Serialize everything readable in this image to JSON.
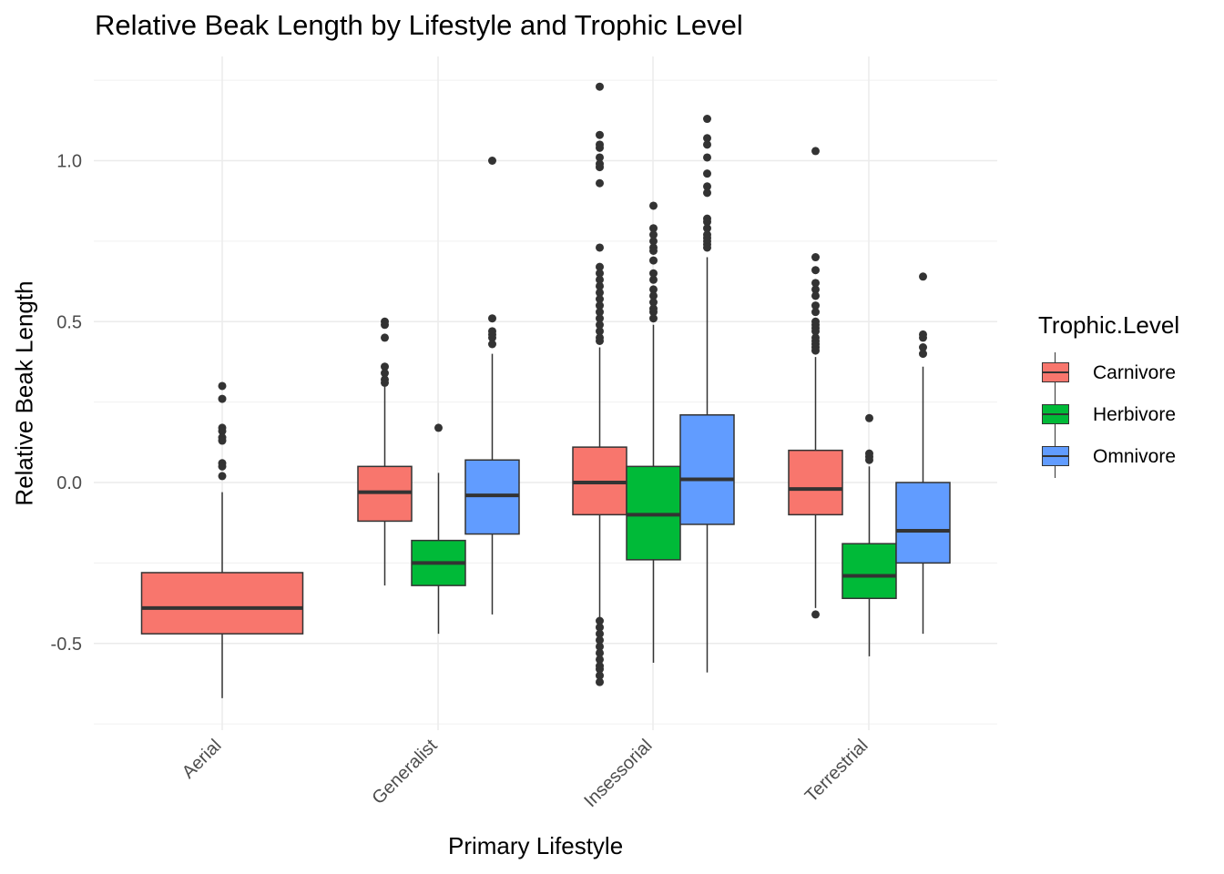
{
  "chart_data": {
    "type": "boxplot",
    "title": "Relative Beak Length by Lifestyle and Trophic Level",
    "xlabel": "Primary Lifestyle",
    "ylabel": "Relative Beak Length",
    "ylim": [
      -0.75,
      1.25
    ],
    "yticks": [
      -0.5,
      0.0,
      0.5,
      1.0
    ],
    "ytick_labels": [
      "-0.5",
      "0.0",
      "0.5",
      "1.0"
    ],
    "categories": [
      "Aerial",
      "Generalist",
      "Insessorial",
      "Terrestrial"
    ],
    "grid": true,
    "legend": {
      "title": "Trophic.Level",
      "position": "right",
      "entries": [
        {
          "name": "Carnivore",
          "color": "#F8766D"
        },
        {
          "name": "Herbivore",
          "color": "#00BA38"
        },
        {
          "name": "Omnivore",
          "color": "#619CFF"
        }
      ]
    },
    "boxes": [
      {
        "category": "Aerial",
        "group": "Carnivore",
        "slot": 0,
        "nslots": 1,
        "min": -0.67,
        "q1": -0.47,
        "median": -0.39,
        "q3": -0.28,
        "max": -0.03,
        "outliers": [
          0.3,
          0.26,
          0.17,
          0.16,
          0.14,
          0.13,
          0.06,
          0.05,
          0.02
        ]
      },
      {
        "category": "Generalist",
        "group": "Carnivore",
        "slot": 0,
        "nslots": 3,
        "min": -0.32,
        "q1": -0.12,
        "median": -0.03,
        "q3": 0.05,
        "max": 0.3,
        "outliers": [
          0.5,
          0.49,
          0.45,
          0.36,
          0.34,
          0.32,
          0.31
        ]
      },
      {
        "category": "Generalist",
        "group": "Herbivore",
        "slot": 1,
        "nslots": 3,
        "min": -0.47,
        "q1": -0.32,
        "median": -0.25,
        "q3": -0.18,
        "max": 0.03,
        "outliers": [
          0.17
        ]
      },
      {
        "category": "Generalist",
        "group": "Omnivore",
        "slot": 2,
        "nslots": 3,
        "min": -0.41,
        "q1": -0.16,
        "median": -0.04,
        "q3": 0.07,
        "max": 0.4,
        "outliers": [
          1.0,
          0.51,
          0.47,
          0.46,
          0.45,
          0.43
        ]
      },
      {
        "category": "Insessorial",
        "group": "Carnivore",
        "slot": 0,
        "nslots": 3,
        "min": -0.42,
        "q1": -0.1,
        "median": 0.0,
        "q3": 0.11,
        "max": 0.42,
        "outliers": [
          1.23,
          1.08,
          1.05,
          1.04,
          1.01,
          0.99,
          0.98,
          0.93,
          0.73,
          0.67,
          0.65,
          0.63,
          0.61,
          0.59,
          0.57,
          0.55,
          0.53,
          0.51,
          0.49,
          0.47,
          0.45,
          0.44,
          -0.43,
          -0.45,
          -0.47,
          -0.49,
          -0.51,
          -0.53,
          -0.55,
          -0.57,
          -0.58,
          -0.6,
          -0.62
        ]
      },
      {
        "category": "Insessorial",
        "group": "Herbivore",
        "slot": 1,
        "nslots": 3,
        "min": -0.56,
        "q1": -0.24,
        "median": -0.1,
        "q3": 0.05,
        "max": 0.49,
        "outliers": [
          0.86,
          0.79,
          0.77,
          0.75,
          0.73,
          0.72,
          0.69,
          0.65,
          0.63,
          0.6,
          0.58,
          0.56,
          0.54,
          0.53,
          0.51
        ]
      },
      {
        "category": "Insessorial",
        "group": "Omnivore",
        "slot": 2,
        "nslots": 3,
        "min": -0.59,
        "q1": -0.13,
        "median": 0.01,
        "q3": 0.21,
        "max": 0.7,
        "outliers": [
          1.13,
          1.07,
          1.05,
          1.01,
          0.96,
          0.92,
          0.9,
          0.82,
          0.81,
          0.79,
          0.77,
          0.76,
          0.75,
          0.74,
          0.73
        ]
      },
      {
        "category": "Terrestrial",
        "group": "Carnivore",
        "slot": 0,
        "nslots": 3,
        "min": -0.39,
        "q1": -0.1,
        "median": -0.02,
        "q3": 0.1,
        "max": 0.39,
        "outliers": [
          1.03,
          0.7,
          0.66,
          0.62,
          0.6,
          0.58,
          0.55,
          0.53,
          0.5,
          0.49,
          0.48,
          0.47,
          0.45,
          0.44,
          0.43,
          0.42,
          0.41,
          -0.41
        ]
      },
      {
        "category": "Terrestrial",
        "group": "Herbivore",
        "slot": 1,
        "nslots": 3,
        "min": -0.54,
        "q1": -0.36,
        "median": -0.29,
        "q3": -0.19,
        "max": 0.05,
        "outliers": [
          0.2,
          0.09,
          0.08,
          0.07
        ]
      },
      {
        "category": "Terrestrial",
        "group": "Omnivore",
        "slot": 2,
        "nslots": 3,
        "min": -0.47,
        "q1": -0.25,
        "median": -0.15,
        "q3": 0.0,
        "max": 0.36,
        "outliers": [
          0.64,
          0.46,
          0.45,
          0.42,
          0.4
        ]
      }
    ]
  }
}
